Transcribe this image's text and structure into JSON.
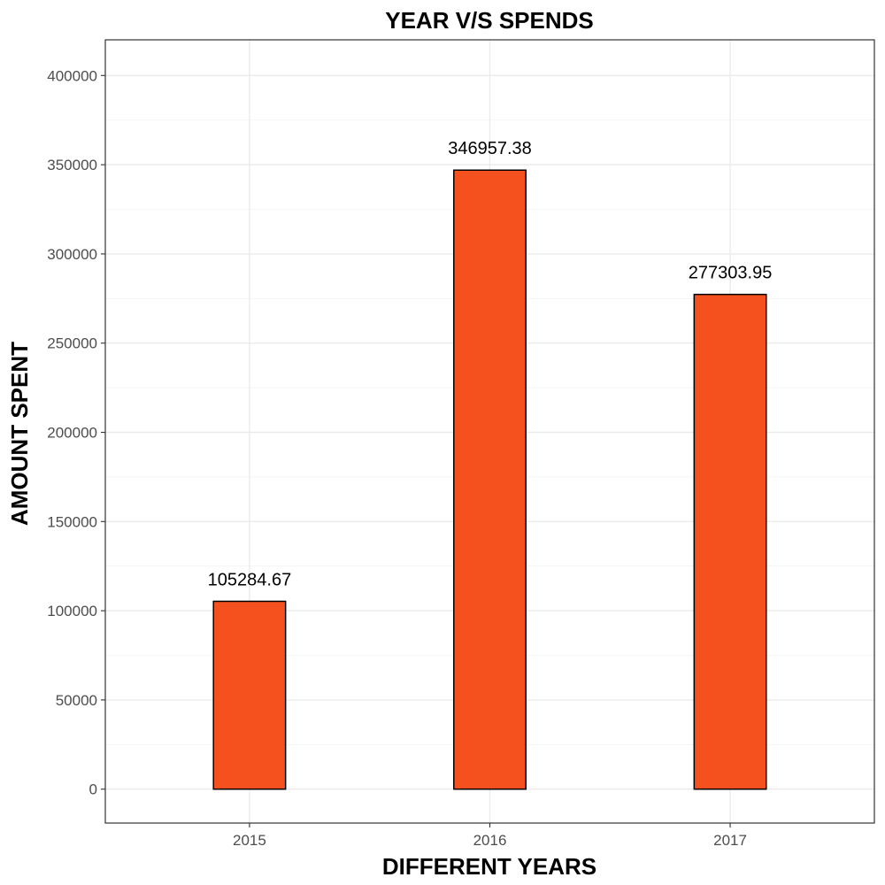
{
  "chart_data": {
    "type": "bar",
    "title": "YEAR V/S SPENDS",
    "xlabel": "DIFFERENT YEARS",
    "ylabel": "AMOUNT SPENT",
    "categories": [
      "2015",
      "2016",
      "2017"
    ],
    "values": [
      105284.67,
      346957.38,
      277303.95
    ],
    "data_labels": [
      "105284.67",
      "346957.38",
      "277303.95"
    ],
    "ylim": [
      -19000,
      420000
    ],
    "yticks": [
      0,
      50000,
      100000,
      150000,
      200000,
      250000,
      300000,
      350000,
      400000
    ],
    "ytick_labels": [
      "0",
      "50000",
      "100000",
      "150000",
      "200000",
      "250000",
      "300000",
      "350000",
      "400000"
    ],
    "bar_color": "#F4511E",
    "bar_border_color": "#000000",
    "grid": true,
    "legend": "none"
  }
}
